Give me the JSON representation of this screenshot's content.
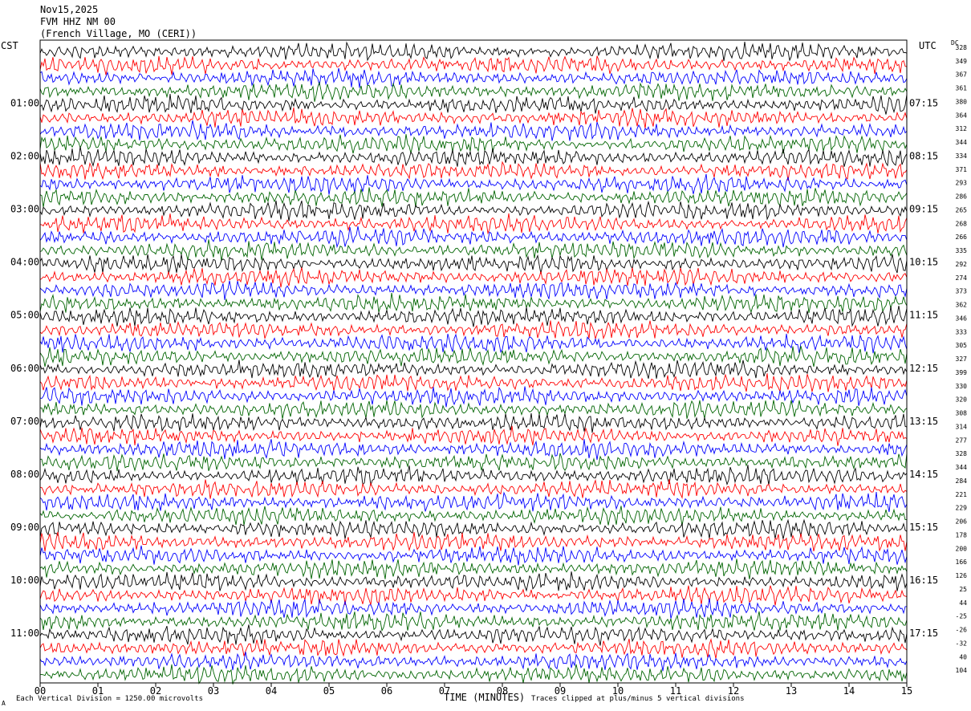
{
  "header": {
    "date": "Nov15,2025",
    "station": "FVM HHZ NM 00",
    "location": "(French Village, MO (CERI))"
  },
  "left_timezone": "CST",
  "right_timezone": "UTC",
  "dc_label": "DC",
  "footer": {
    "scale_note": "Each Vertical Division = 1250.00 microvolts",
    "clip_note": "Traces clipped at plus/minus 5 vertical divisions",
    "corner_mark": "A"
  },
  "colors": {
    "trace_cycle": [
      "#000000",
      "#ff0000",
      "#0000ff",
      "#006400"
    ],
    "frame": "#000000",
    "background": "#ffffff"
  },
  "chart_data": {
    "type": "line",
    "title": "",
    "xlabel": "TIME (MINUTES)",
    "ylabel": "",
    "xlim": [
      0,
      15
    ],
    "x_ticks": [
      "00",
      "01",
      "02",
      "03",
      "04",
      "05",
      "06",
      "07",
      "08",
      "09",
      "10",
      "11",
      "12",
      "13",
      "14",
      "15"
    ],
    "left_hour_labels": [
      "01:00",
      "02:00",
      "03:00",
      "04:00",
      "05:00",
      "06:00",
      "07:00",
      "08:00",
      "09:00",
      "10:00",
      "11:00"
    ],
    "right_hour_labels": [
      "07:15",
      "08:15",
      "09:15",
      "10:15",
      "11:15",
      "12:15",
      "13:15",
      "14:15",
      "15:15",
      "16:15",
      "17:15"
    ],
    "trace_count": 48,
    "traces_per_hour": 4,
    "dc_offsets": [
      328,
      349,
      367,
      361,
      380,
      364,
      312,
      344,
      334,
      371,
      293,
      286,
      265,
      268,
      266,
      335,
      292,
      274,
      373,
      362,
      346,
      333,
      305,
      327,
      399,
      330,
      320,
      308,
      314,
      277,
      328,
      344,
      284,
      221,
      229,
      206,
      178,
      200,
      166,
      126,
      25,
      44,
      -25,
      -26,
      -32,
      40,
      104
    ]
  }
}
